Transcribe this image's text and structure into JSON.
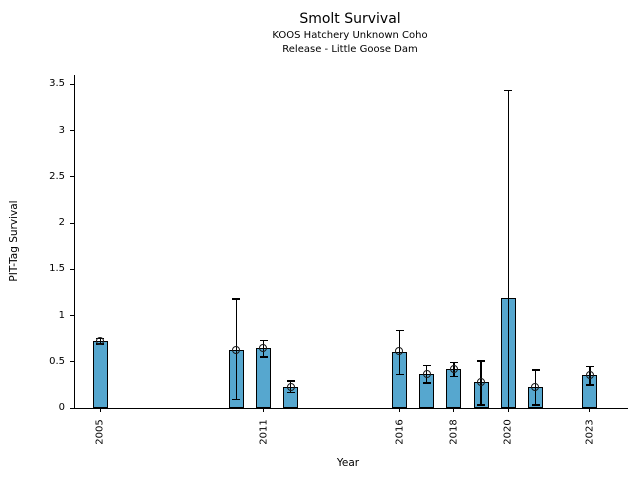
{
  "figure": {
    "title": "Smolt Survival",
    "subtitle_line1": "KOOS Hatchery Unknown Coho",
    "subtitle_line2": "Release - Little Goose Dam"
  },
  "chart_data": {
    "type": "bar",
    "title": "Smolt Survival",
    "subtitle": [
      "KOOS Hatchery Unknown Coho",
      "Release - Little Goose Dam"
    ],
    "xlabel": "Year",
    "ylabel": "PIT-Tag Survival",
    "xlim": [
      2004.07,
      2024.4
    ],
    "ylim": [
      0,
      3.6
    ],
    "x_ticks": [
      2005,
      2011,
      2016,
      2018,
      2020,
      2023
    ],
    "x_tick_labels": [
      "2005",
      "2011",
      "2016",
      "2018",
      "2020",
      "2023"
    ],
    "y_ticks": [
      0,
      0.5,
      1,
      1.5,
      2,
      2.5,
      3,
      3.5
    ],
    "y_tick_labels": [
      "0",
      "0.5",
      "1",
      "1.5",
      "2",
      "2.5",
      "3",
      "3.5"
    ],
    "grid": false,
    "legend": null,
    "bar_color": "#56a7cf",
    "bar_edge_color": "#000000",
    "error_color": "#000000",
    "points": [
      {
        "year": 2005,
        "value": 0.72,
        "ci_low": 0.69,
        "ci_high": 0.75,
        "marker": true
      },
      {
        "year": 2010,
        "value": 0.63,
        "ci_low": 0.09,
        "ci_high": 1.18,
        "marker": true
      },
      {
        "year": 2011,
        "value": 0.65,
        "ci_low": 0.55,
        "ci_high": 0.73,
        "marker": true
      },
      {
        "year": 2012,
        "value": 0.23,
        "ci_low": 0.17,
        "ci_high": 0.29,
        "marker": true
      },
      {
        "year": 2016,
        "value": 0.61,
        "ci_low": 0.36,
        "ci_high": 0.84,
        "marker": true
      },
      {
        "year": 2017,
        "value": 0.37,
        "ci_low": 0.27,
        "ci_high": 0.46,
        "marker": true
      },
      {
        "year": 2018,
        "value": 0.42,
        "ci_low": 0.34,
        "ci_high": 0.49,
        "marker": true
      },
      {
        "year": 2019,
        "value": 0.28,
        "ci_low": 0.03,
        "ci_high": 0.51,
        "marker": true
      },
      {
        "year": 2020,
        "value": 1.19,
        "ci_low": 0.0,
        "ci_high": 3.43,
        "marker": false
      },
      {
        "year": 2021,
        "value": 0.23,
        "ci_low": 0.03,
        "ci_high": 0.41,
        "marker": true
      },
      {
        "year": 2023,
        "value": 0.36,
        "ci_low": 0.25,
        "ci_high": 0.45,
        "marker": true
      }
    ]
  }
}
